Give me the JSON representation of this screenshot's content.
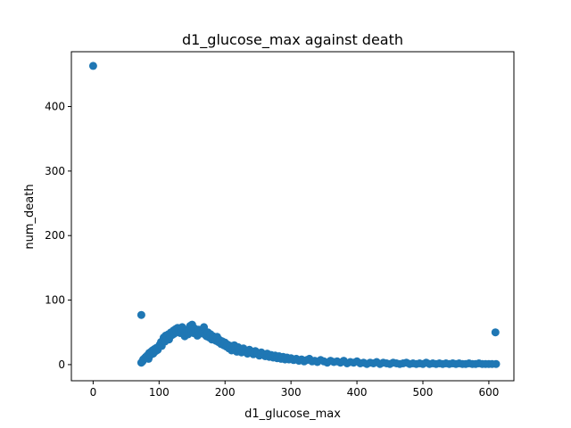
{
  "chart_data": {
    "type": "scatter",
    "title": "d1_glucose_max against death",
    "xlabel": "d1_glucose_max",
    "ylabel": "num_death",
    "xlim": [
      -33,
      638
    ],
    "ylim": [
      -25,
      485
    ],
    "xticks": [
      0,
      100,
      200,
      300,
      400,
      500,
      600
    ],
    "yticks": [
      0,
      100,
      200,
      300,
      400
    ],
    "point_color": "#1f77b4",
    "grid": false,
    "legend": "none",
    "points": [
      [
        0,
        463
      ],
      [
        73,
        77
      ],
      [
        610,
        50
      ],
      [
        611,
        1
      ],
      [
        73,
        3
      ],
      [
        75,
        5
      ],
      [
        76,
        8
      ],
      [
        78,
        10
      ],
      [
        80,
        12
      ],
      [
        82,
        14
      ],
      [
        84,
        9
      ],
      [
        85,
        18
      ],
      [
        87,
        15
      ],
      [
        88,
        20
      ],
      [
        90,
        22
      ],
      [
        91,
        17
      ],
      [
        93,
        24
      ],
      [
        95,
        21
      ],
      [
        96,
        26
      ],
      [
        98,
        23
      ],
      [
        100,
        28
      ],
      [
        101,
        31
      ],
      [
        103,
        35
      ],
      [
        104,
        29
      ],
      [
        106,
        38
      ],
      [
        107,
        42
      ],
      [
        109,
        36
      ],
      [
        110,
        45
      ],
      [
        112,
        41
      ],
      [
        114,
        47
      ],
      [
        115,
        39
      ],
      [
        117,
        44
      ],
      [
        118,
        50
      ],
      [
        120,
        46
      ],
      [
        122,
        53
      ],
      [
        123,
        48
      ],
      [
        125,
        55
      ],
      [
        127,
        51
      ],
      [
        128,
        57
      ],
      [
        130,
        52
      ],
      [
        132,
        49
      ],
      [
        133,
        56
      ],
      [
        135,
        58
      ],
      [
        137,
        54
      ],
      [
        139,
        44
      ],
      [
        140,
        50
      ],
      [
        142,
        52
      ],
      [
        144,
        47
      ],
      [
        145,
        55
      ],
      [
        147,
        60
      ],
      [
        149,
        53
      ],
      [
        150,
        62
      ],
      [
        152,
        49
      ],
      [
        154,
        56
      ],
      [
        156,
        51
      ],
      [
        158,
        45
      ],
      [
        160,
        54
      ],
      [
        162,
        48
      ],
      [
        164,
        53
      ],
      [
        166,
        50
      ],
      [
        168,
        58
      ],
      [
        170,
        46
      ],
      [
        172,
        44
      ],
      [
        174,
        50
      ],
      [
        176,
        42
      ],
      [
        178,
        47
      ],
      [
        180,
        39
      ],
      [
        182,
        44
      ],
      [
        184,
        41
      ],
      [
        186,
        37
      ],
      [
        188,
        43
      ],
      [
        190,
        35
      ],
      [
        192,
        38
      ],
      [
        194,
        32
      ],
      [
        196,
        36
      ],
      [
        198,
        30
      ],
      [
        200,
        34
      ],
      [
        202,
        28
      ],
      [
        204,
        31
      ],
      [
        206,
        25
      ],
      [
        208,
        29
      ],
      [
        210,
        22
      ],
      [
        212,
        26
      ],
      [
        214,
        30
      ],
      [
        216,
        24
      ],
      [
        218,
        20
      ],
      [
        220,
        27
      ],
      [
        222,
        23
      ],
      [
        225,
        19
      ],
      [
        228,
        25
      ],
      [
        231,
        21
      ],
      [
        234,
        17
      ],
      [
        237,
        23
      ],
      [
        240,
        20
      ],
      [
        243,
        16
      ],
      [
        246,
        21
      ],
      [
        249,
        18
      ],
      [
        252,
        14
      ],
      [
        255,
        19
      ],
      [
        258,
        16
      ],
      [
        261,
        13
      ],
      [
        264,
        17
      ],
      [
        267,
        12
      ],
      [
        270,
        15
      ],
      [
        273,
        11
      ],
      [
        276,
        14
      ],
      [
        279,
        10
      ],
      [
        282,
        13
      ],
      [
        285,
        9
      ],
      [
        288,
        12
      ],
      [
        291,
        8
      ],
      [
        294,
        11
      ],
      [
        297,
        8
      ],
      [
        300,
        10
      ],
      [
        304,
        7
      ],
      [
        308,
        9
      ],
      [
        312,
        6
      ],
      [
        316,
        8
      ],
      [
        320,
        5
      ],
      [
        324,
        7
      ],
      [
        328,
        9
      ],
      [
        332,
        5
      ],
      [
        336,
        6
      ],
      [
        340,
        4
      ],
      [
        345,
        7
      ],
      [
        350,
        5
      ],
      [
        355,
        3
      ],
      [
        360,
        6
      ],
      [
        365,
        4
      ],
      [
        370,
        5
      ],
      [
        375,
        3
      ],
      [
        380,
        6
      ],
      [
        385,
        2
      ],
      [
        390,
        4
      ],
      [
        395,
        3
      ],
      [
        400,
        5
      ],
      [
        405,
        2
      ],
      [
        410,
        3
      ],
      [
        415,
        1
      ],
      [
        420,
        3
      ],
      [
        425,
        2
      ],
      [
        430,
        4
      ],
      [
        435,
        1
      ],
      [
        440,
        3
      ],
      [
        445,
        2
      ],
      [
        450,
        1
      ],
      [
        455,
        3
      ],
      [
        460,
        2
      ],
      [
        465,
        1
      ],
      [
        470,
        2
      ],
      [
        475,
        3
      ],
      [
        480,
        1
      ],
      [
        485,
        2
      ],
      [
        490,
        1
      ],
      [
        495,
        2
      ],
      [
        500,
        1
      ],
      [
        505,
        3
      ],
      [
        510,
        1
      ],
      [
        515,
        2
      ],
      [
        520,
        1
      ],
      [
        525,
        2
      ],
      [
        530,
        1
      ],
      [
        535,
        2
      ],
      [
        540,
        1
      ],
      [
        545,
        2
      ],
      [
        550,
        1
      ],
      [
        555,
        2
      ],
      [
        560,
        1
      ],
      [
        565,
        1
      ],
      [
        570,
        2
      ],
      [
        575,
        1
      ],
      [
        580,
        1
      ],
      [
        585,
        2
      ],
      [
        590,
        1
      ],
      [
        595,
        1
      ],
      [
        600,
        1
      ],
      [
        605,
        1
      ]
    ]
  }
}
